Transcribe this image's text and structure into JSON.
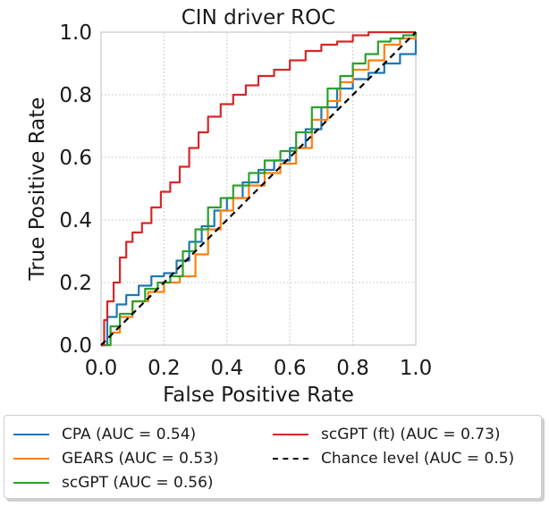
{
  "chart_data": {
    "type": "line",
    "title": "CIN driver ROC",
    "xlabel": "False Positive Rate",
    "ylabel": "True Positive Rate",
    "xlim": [
      0.0,
      1.0
    ],
    "ylim": [
      0.0,
      1.0
    ],
    "xticks": [
      "0.0",
      "0.2",
      "0.4",
      "0.6",
      "0.8",
      "1.0"
    ],
    "yticks": [
      "0.0",
      "0.2",
      "0.4",
      "0.6",
      "0.8",
      "1.0"
    ],
    "grid": true,
    "legend_position": "below",
    "series": [
      {
        "name": "CPA (AUC = 0.54)",
        "color": "#1f77b4",
        "dash": "solid",
        "x": [
          0.0,
          0.02,
          0.05,
          0.08,
          0.12,
          0.16,
          0.2,
          0.24,
          0.28,
          0.32,
          0.36,
          0.4,
          0.45,
          0.5,
          0.55,
          0.6,
          0.65,
          0.7,
          0.75,
          0.8,
          0.85,
          0.9,
          0.95,
          1.0
        ],
        "y": [
          0.0,
          0.09,
          0.13,
          0.16,
          0.19,
          0.22,
          0.23,
          0.27,
          0.33,
          0.38,
          0.43,
          0.47,
          0.52,
          0.56,
          0.59,
          0.63,
          0.69,
          0.76,
          0.82,
          0.85,
          0.87,
          0.9,
          0.93,
          1.0
        ]
      },
      {
        "name": "GEARS (AUC = 0.53)",
        "color": "#ff7f0e",
        "dash": "solid",
        "x": [
          0.0,
          0.03,
          0.06,
          0.1,
          0.15,
          0.2,
          0.25,
          0.3,
          0.34,
          0.38,
          0.42,
          0.47,
          0.52,
          0.57,
          0.62,
          0.67,
          0.72,
          0.76,
          0.8,
          0.85,
          0.9,
          0.95,
          1.0
        ],
        "y": [
          0.0,
          0.04,
          0.09,
          0.14,
          0.17,
          0.2,
          0.22,
          0.29,
          0.37,
          0.43,
          0.47,
          0.51,
          0.55,
          0.58,
          0.63,
          0.72,
          0.78,
          0.84,
          0.88,
          0.91,
          0.96,
          0.98,
          1.0
        ]
      },
      {
        "name": "scGPT (AUC = 0.56)",
        "color": "#2ca02c",
        "dash": "solid",
        "x": [
          0.0,
          0.03,
          0.06,
          0.1,
          0.14,
          0.18,
          0.22,
          0.26,
          0.3,
          0.34,
          0.38,
          0.42,
          0.47,
          0.52,
          0.57,
          0.62,
          0.67,
          0.72,
          0.76,
          0.8,
          0.84,
          0.88,
          0.92,
          0.96,
          1.0
        ],
        "y": [
          0.0,
          0.06,
          0.1,
          0.14,
          0.18,
          0.2,
          0.22,
          0.3,
          0.37,
          0.44,
          0.47,
          0.51,
          0.55,
          0.59,
          0.62,
          0.68,
          0.76,
          0.82,
          0.86,
          0.9,
          0.93,
          0.97,
          0.98,
          0.99,
          1.0
        ]
      },
      {
        "name": "scGPT (ft) (AUC = 0.73)",
        "color": "#d62728",
        "dash": "solid",
        "x": [
          0.0,
          0.01,
          0.02,
          0.04,
          0.06,
          0.08,
          0.1,
          0.13,
          0.16,
          0.19,
          0.22,
          0.25,
          0.28,
          0.31,
          0.34,
          0.38,
          0.42,
          0.46,
          0.5,
          0.55,
          0.6,
          0.65,
          0.7,
          0.75,
          0.8,
          0.85,
          0.9,
          0.95,
          1.0
        ],
        "y": [
          0.0,
          0.08,
          0.14,
          0.2,
          0.28,
          0.33,
          0.36,
          0.39,
          0.44,
          0.49,
          0.52,
          0.57,
          0.63,
          0.68,
          0.73,
          0.77,
          0.8,
          0.83,
          0.86,
          0.88,
          0.91,
          0.94,
          0.96,
          0.97,
          0.99,
          1.0,
          1.0,
          1.0,
          1.0
        ]
      },
      {
        "name": "Chance level (AUC = 0.5)",
        "color": "#000000",
        "dash": "dashed",
        "x": [
          0.0,
          1.0
        ],
        "y": [
          0.0,
          1.0
        ]
      }
    ]
  }
}
